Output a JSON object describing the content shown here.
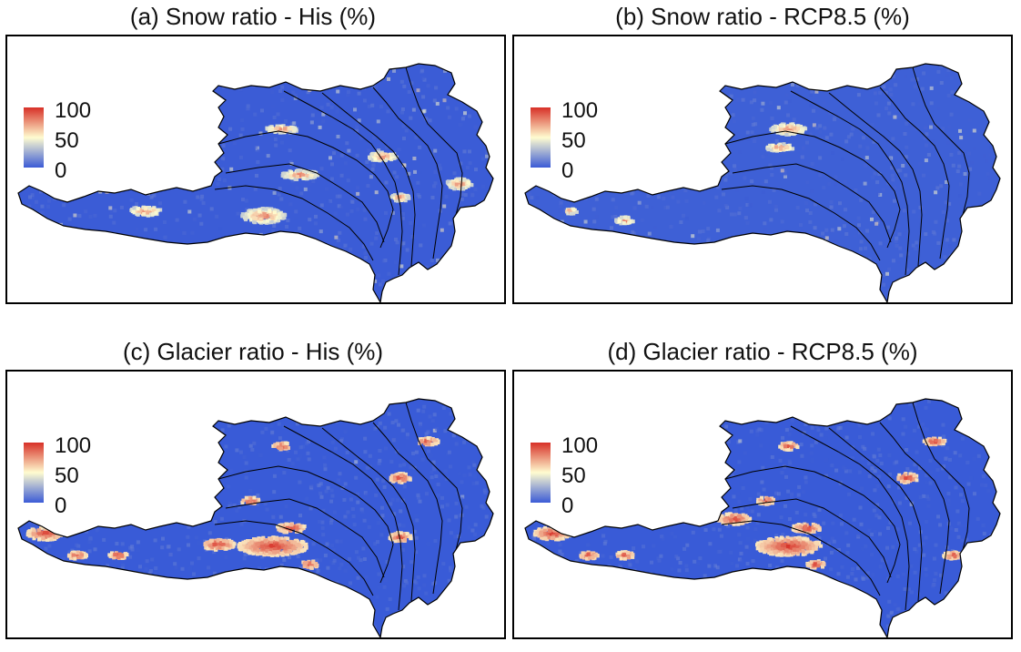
{
  "panels": [
    {
      "title": "(a) Snow ratio - His (%)",
      "variable": "snow",
      "scenario": "His",
      "legend": {
        "max": "100",
        "mid": "50",
        "min": "0"
      }
    },
    {
      "title": "(b) Snow ratio - RCP8.5 (%)",
      "variable": "snow",
      "scenario": "RCP8.5",
      "legend": {
        "max": "100",
        "mid": "50",
        "min": "0"
      }
    },
    {
      "title": "(c) Glacier ratio - His (%)",
      "variable": "glacier",
      "scenario": "His",
      "legend": {
        "max": "100",
        "mid": "50",
        "min": "0"
      }
    },
    {
      "title": "(d) Glacier ratio - RCP8.5 (%)",
      "variable": "glacier",
      "scenario": "RCP8.5",
      "legend": {
        "max": "100",
        "mid": "50",
        "min": "0"
      }
    }
  ],
  "colors": {
    "low": "#3b5bd6",
    "mid": "#fffcd0",
    "high": "#d73027",
    "outline": "#000000"
  }
}
